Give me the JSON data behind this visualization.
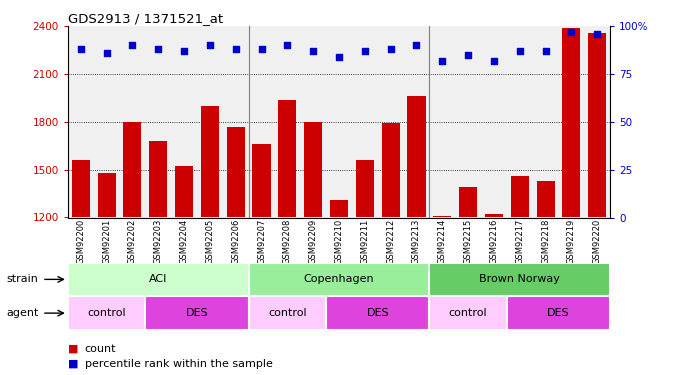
{
  "title": "GDS2913 / 1371521_at",
  "samples": [
    "GSM92200",
    "GSM92201",
    "GSM92202",
    "GSM92203",
    "GSM92204",
    "GSM92205",
    "GSM92206",
    "GSM92207",
    "GSM92208",
    "GSM92209",
    "GSM92210",
    "GSM92211",
    "GSM92212",
    "GSM92213",
    "GSM92214",
    "GSM92215",
    "GSM92216",
    "GSM92217",
    "GSM92218",
    "GSM92219",
    "GSM92220"
  ],
  "counts": [
    1560,
    1480,
    1800,
    1680,
    1520,
    1900,
    1770,
    1660,
    1940,
    1800,
    1310,
    1560,
    1790,
    1960,
    1210,
    1390,
    1220,
    1460,
    1430,
    2390,
    2360
  ],
  "percentiles": [
    88,
    86,
    90,
    88,
    87,
    90,
    88,
    88,
    90,
    87,
    84,
    87,
    88,
    90,
    82,
    85,
    82,
    87,
    87,
    97,
    96
  ],
  "bar_color": "#cc0000",
  "dot_color": "#0000cc",
  "ylim_left": [
    1200,
    2400
  ],
  "ylim_right": [
    0,
    100
  ],
  "yticks_left": [
    1200,
    1500,
    1800,
    2100,
    2400
  ],
  "yticks_right": [
    0,
    25,
    50,
    75,
    100
  ],
  "strain_groups": [
    {
      "label": "ACI",
      "start": 0,
      "end": 6,
      "color": "#ccffcc"
    },
    {
      "label": "Copenhagen",
      "start": 7,
      "end": 13,
      "color": "#99ee99"
    },
    {
      "label": "Brown Norway",
      "start": 14,
      "end": 20,
      "color": "#66cc66"
    }
  ],
  "agent_groups": [
    {
      "label": "control",
      "start": 0,
      "end": 2,
      "color": "#ffccff"
    },
    {
      "label": "DES",
      "start": 3,
      "end": 6,
      "color": "#dd44dd"
    },
    {
      "label": "control",
      "start": 7,
      "end": 9,
      "color": "#ffccff"
    },
    {
      "label": "DES",
      "start": 10,
      "end": 13,
      "color": "#dd44dd"
    },
    {
      "label": "control",
      "start": 14,
      "end": 16,
      "color": "#ffccff"
    },
    {
      "label": "DES",
      "start": 17,
      "end": 20,
      "color": "#dd44dd"
    }
  ],
  "legend_count_color": "#cc0000",
  "legend_pct_color": "#0000cc"
}
